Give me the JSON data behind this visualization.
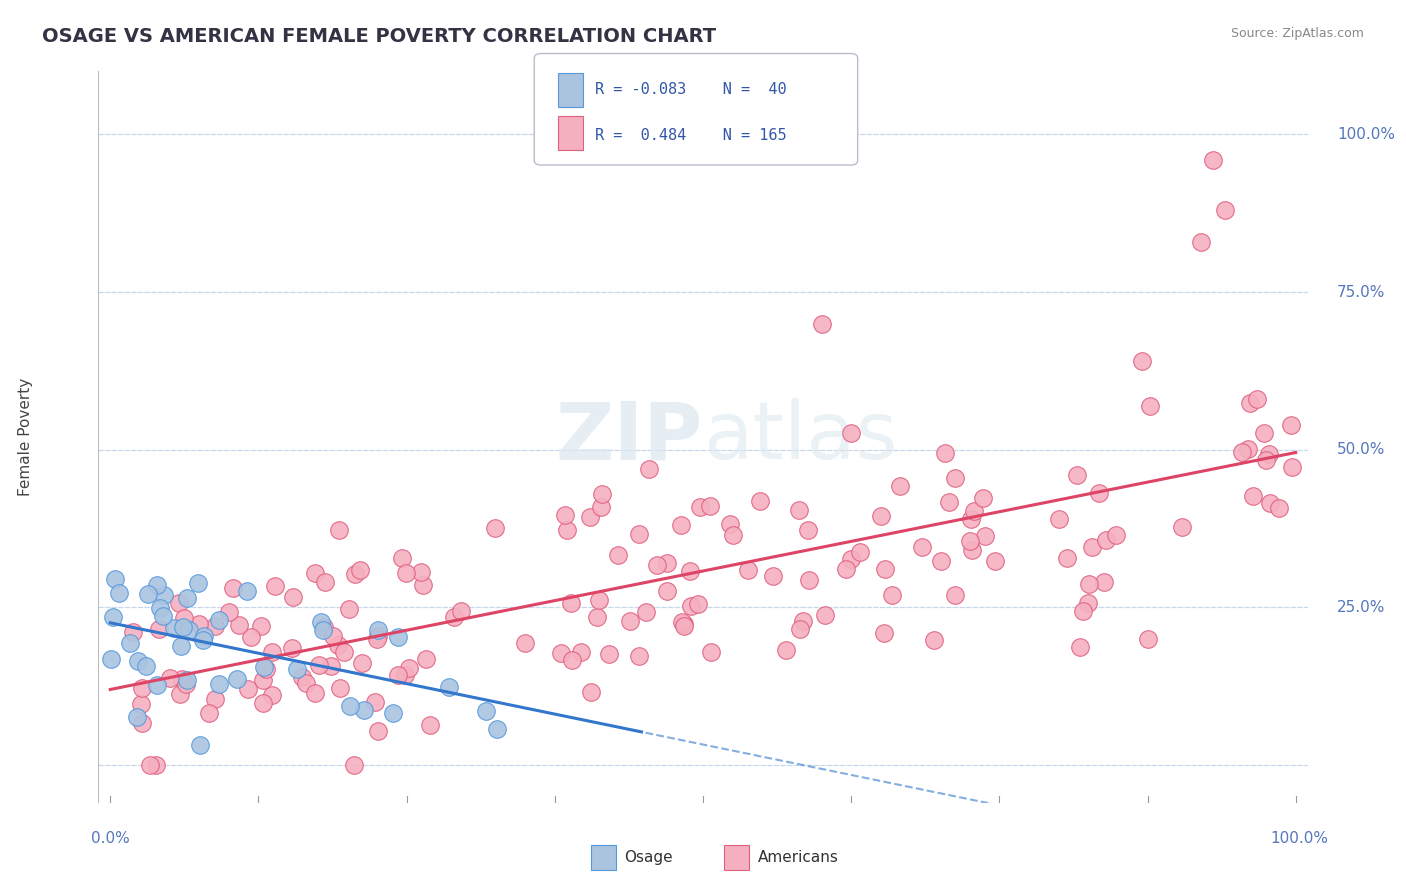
{
  "title": "OSAGE VS AMERICAN FEMALE POVERTY CORRELATION CHART",
  "source": "Source: ZipAtlas.com",
  "ylabel": "Female Poverty",
  "osage_color": "#aac4e0",
  "osage_edge_color": "#5599dd",
  "americans_color": "#f5b0c0",
  "americans_edge_color": "#e06080",
  "osage_line_color": "#3377cc",
  "americans_line_color": "#dd4466",
  "background_color": "#ffffff",
  "grid_color": "#c8d8ec",
  "title_fontsize": 14,
  "title_color": "#333344",
  "source_color": "#888888",
  "tick_color": "#5577bb",
  "ylabel_color": "#444444",
  "legend_text_color": "#3355aa",
  "legend_r1": "R = -0.083",
  "legend_n1": "N =  40",
  "legend_r2": "R =  0.484",
  "legend_n2": "N = 165"
}
